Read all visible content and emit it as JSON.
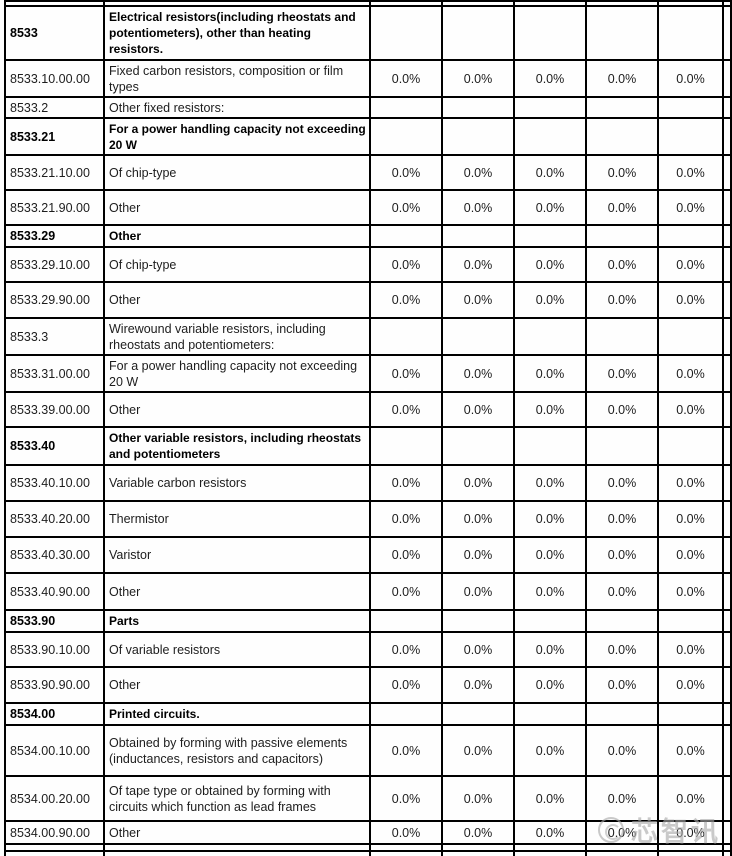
{
  "page": {
    "background_color": "#fdfdfd",
    "grid_border_color": "#000000",
    "text_color": "#1d1d1d",
    "rate_placeholder": "0.0%"
  },
  "table": {
    "rate_column_count": 5,
    "rows": [
      {
        "kind": "partial",
        "code": "",
        "description": "",
        "rates": []
      },
      {
        "kind": "section",
        "code": "8533",
        "description": "Electrical resistors(including rheostats and potentiometers), other than heating resistors.",
        "rates": []
      },
      {
        "kind": "item",
        "code": "8533.10.00.00",
        "description": "Fixed carbon resistors, composition or film types",
        "rates": [
          "0.0%",
          "0.0%",
          "0.0%",
          "0.0%",
          "0.0%"
        ]
      },
      {
        "kind": "plain",
        "code": "8533.2",
        "description": "Other fixed resistors:",
        "rates": []
      },
      {
        "kind": "section",
        "code": "8533.21",
        "description": "For a power handling capacity not exceeding 20 W",
        "rates": []
      },
      {
        "kind": "item",
        "code": "8533.21.10.00",
        "description": "Of chip-type",
        "rates": [
          "0.0%",
          "0.0%",
          "0.0%",
          "0.0%",
          "0.0%"
        ]
      },
      {
        "kind": "item",
        "code": "8533.21.90.00",
        "description": "Other",
        "rates": [
          "0.0%",
          "0.0%",
          "0.0%",
          "0.0%",
          "0.0%"
        ]
      },
      {
        "kind": "section",
        "code": "8533.29",
        "description": "Other",
        "rates": []
      },
      {
        "kind": "item",
        "code": "8533.29.10.00",
        "description": "Of chip-type",
        "rates": [
          "0.0%",
          "0.0%",
          "0.0%",
          "0.0%",
          "0.0%"
        ]
      },
      {
        "kind": "item",
        "code": "8533.29.90.00",
        "description": "Other",
        "rates": [
          "0.0%",
          "0.0%",
          "0.0%",
          "0.0%",
          "0.0%"
        ]
      },
      {
        "kind": "plain",
        "code": "8533.3",
        "description": "Wirewound variable resistors, including rheostats and potentiometers:",
        "rates": []
      },
      {
        "kind": "item",
        "code": "8533.31.00.00",
        "description": "For a power handling capacity not exceeding 20 W",
        "rates": [
          "0.0%",
          "0.0%",
          "0.0%",
          "0.0%",
          "0.0%"
        ]
      },
      {
        "kind": "item",
        "code": "8533.39.00.00",
        "description": "Other",
        "rates": [
          "0.0%",
          "0.0%",
          "0.0%",
          "0.0%",
          "0.0%"
        ]
      },
      {
        "kind": "section",
        "code": "8533.40",
        "description": "Other variable resistors, including rheostats and potentiometers",
        "rates": []
      },
      {
        "kind": "item",
        "code": "8533.40.10.00",
        "description": "Variable carbon resistors",
        "rates": [
          "0.0%",
          "0.0%",
          "0.0%",
          "0.0%",
          "0.0%"
        ]
      },
      {
        "kind": "item",
        "code": "8533.40.20.00",
        "description": "Thermistor",
        "rates": [
          "0.0%",
          "0.0%",
          "0.0%",
          "0.0%",
          "0.0%"
        ]
      },
      {
        "kind": "item",
        "code": "8533.40.30.00",
        "description": "Varistor",
        "rates": [
          "0.0%",
          "0.0%",
          "0.0%",
          "0.0%",
          "0.0%"
        ]
      },
      {
        "kind": "item",
        "code": "8533.40.90.00",
        "description": "Other",
        "rates": [
          "0.0%",
          "0.0%",
          "0.0%",
          "0.0%",
          "0.0%"
        ]
      },
      {
        "kind": "section",
        "code": "8533.90",
        "description": "Parts",
        "rates": []
      },
      {
        "kind": "item",
        "code": "8533.90.10.00",
        "description": "Of variable resistors",
        "rates": [
          "0.0%",
          "0.0%",
          "0.0%",
          "0.0%",
          "0.0%"
        ]
      },
      {
        "kind": "item",
        "code": "8533.90.90.00",
        "description": "Other",
        "rates": [
          "0.0%",
          "0.0%",
          "0.0%",
          "0.0%",
          "0.0%"
        ]
      },
      {
        "kind": "section",
        "code": "8534.00",
        "description": "Printed circuits.",
        "rates": []
      },
      {
        "kind": "item",
        "code": "8534.00.10.00",
        "description": "Obtained by forming with passive elements (inductances, resistors and capacitors)",
        "rates": [
          "0.0%",
          "0.0%",
          "0.0%",
          "0.0%",
          "0.0%"
        ]
      },
      {
        "kind": "item",
        "code": "8534.00.20.00",
        "description": "Of tape type or obtained by forming with circuits which function as lead frames",
        "rates": [
          "0.0%",
          "0.0%",
          "0.0%",
          "0.0%",
          "0.0%"
        ]
      },
      {
        "kind": "item",
        "code": "8534.00.90.00",
        "description": "Other",
        "rates": [
          "0.0%",
          "0.0%",
          "0.0%",
          "0.0%",
          "0.0%"
        ]
      },
      {
        "kind": "partial",
        "code": "",
        "description": "",
        "rates": []
      },
      {
        "kind": "partial",
        "code": "",
        "description": "",
        "rates": []
      }
    ]
  },
  "watermark": {
    "text": "芯智讯",
    "logo_icon": "circle-swirl-logo",
    "color": "#a9a9a9"
  }
}
